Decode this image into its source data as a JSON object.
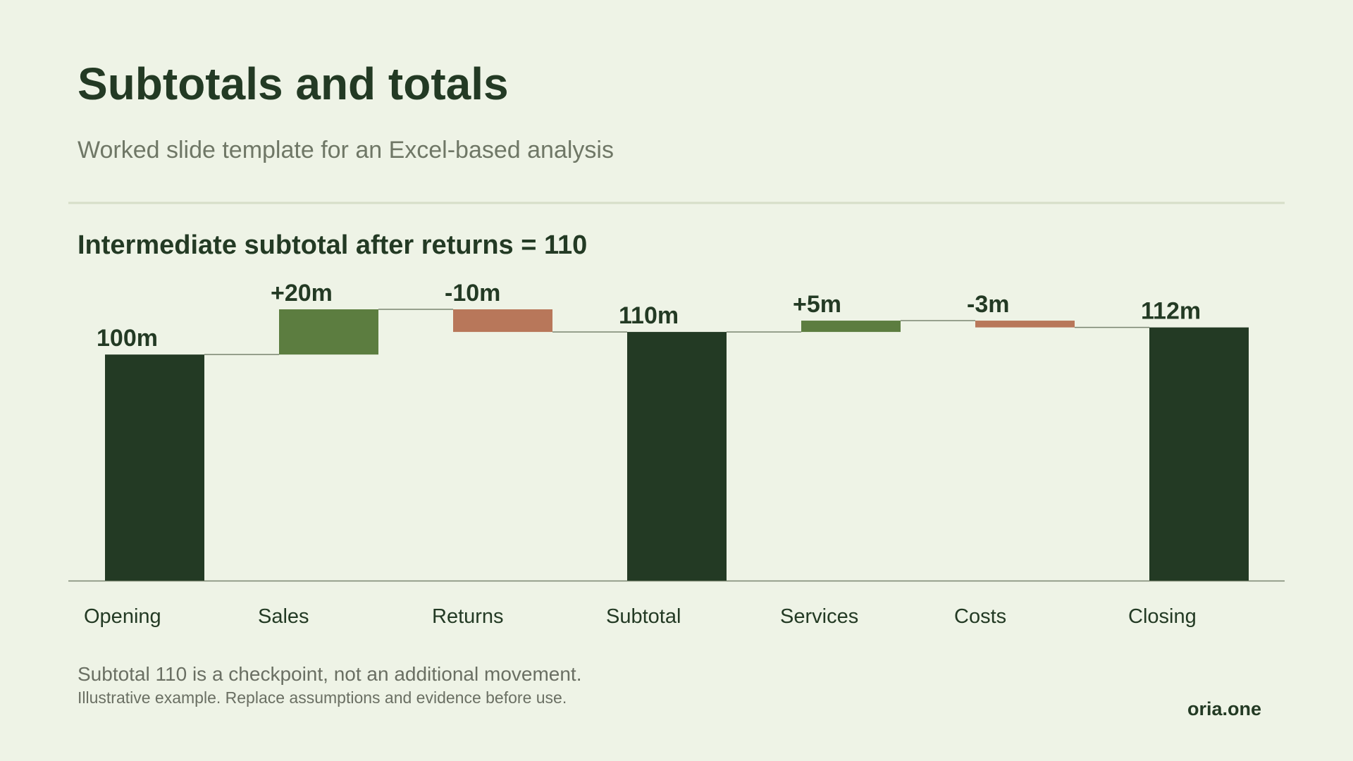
{
  "header": {
    "title": "Subtotals and totals",
    "subtitle": "Worked slide template for an Excel-based analysis"
  },
  "chart_data": {
    "type": "waterfall",
    "title": "Intermediate subtotal after returns = 110",
    "categories": [
      "Opening",
      "Sales",
      "Returns",
      "Subtotal",
      "Services",
      "Costs",
      "Closing"
    ],
    "values": [
      100,
      20,
      -10,
      110,
      5,
      -3,
      112
    ],
    "value_labels": [
      "100m",
      "+20m",
      "-10m",
      "110m",
      "+5m",
      "-3m",
      "112m"
    ],
    "colors": [
      "#233a24",
      "#5c7d40",
      "#b8775a",
      "#233a24",
      "#5c7d40",
      "#b8775a",
      "#233a24"
    ],
    "total_color": "#233a24",
    "ylim": [
      0,
      120
    ]
  },
  "footer": {
    "note": "Subtotal 110 is a checkpoint, not an additional movement.",
    "disclaimer": "Illustrative example. Replace assumptions and evidence before use.",
    "brand": "oria.one"
  }
}
